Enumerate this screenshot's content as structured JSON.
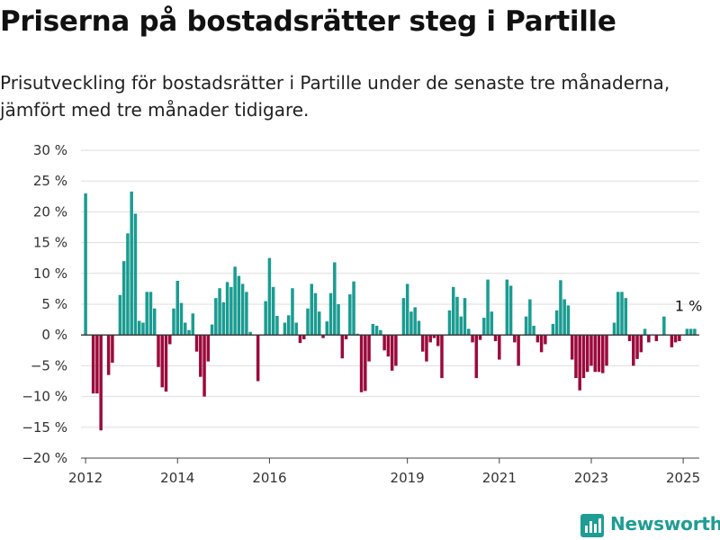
{
  "header": {
    "title": "Priserna på bostadsrätter steg i Partille",
    "subtitle": "Prisutveckling för bostadsrätter i Partille under de senaste tre månaderna, jämfört med tre månader tidigare."
  },
  "brand": {
    "name": "Newsworthy"
  },
  "colors": {
    "positive": "#1a9c91",
    "negative": "#9b0a3c",
    "grid": "#dddddd",
    "zero": "#333333"
  },
  "chart_data": {
    "type": "bar",
    "unit": "%",
    "ylim": [
      -20,
      30
    ],
    "yticks": [
      30,
      25,
      20,
      15,
      10,
      5,
      0,
      -5,
      -10,
      -15,
      -20
    ],
    "ytick_labels": [
      "30 %",
      "25 %",
      "20 %",
      "15 %",
      "10 %",
      "5 %",
      "0 %",
      "−5 %",
      "−10 %",
      "−15 %",
      "−20 %"
    ],
    "x_range": [
      2011.9,
      2025.35
    ],
    "xticks": [
      2012,
      2014,
      2016,
      2019,
      2021,
      2023,
      2025
    ],
    "xtick_labels": [
      "2012",
      "2014",
      "2016",
      "2019",
      "2021",
      "2023",
      "2025"
    ],
    "grid": true,
    "annotation": {
      "text": "1 %",
      "x": 2025.0,
      "y": 1
    },
    "start": 2012.0,
    "step": 0.0833333,
    "values": [
      23.0,
      0,
      -9.5,
      -9.5,
      -15.5,
      0,
      -6.5,
      -4.5,
      0,
      6.5,
      12.0,
      16.5,
      23.3,
      19.7,
      2.3,
      2.0,
      7.0,
      7.0,
      4.3,
      -5.2,
      -8.5,
      -9.2,
      -1.5,
      4.3,
      8.8,
      5.2,
      2.0,
      0.8,
      3.5,
      -2.7,
      -6.8,
      -10.0,
      -4.3,
      1.7,
      6.0,
      7.6,
      5.3,
      8.6,
      7.8,
      11.1,
      9.6,
      8.3,
      7.0,
      0.5,
      0,
      -7.5,
      0,
      5.5,
      12.5,
      7.8,
      3.1,
      0,
      2.0,
      3.2,
      7.6,
      2.0,
      -1.3,
      -0.7,
      4.3,
      8.3,
      6.8,
      3.8,
      -0.5,
      2.2,
      6.8,
      11.8,
      5.0,
      -3.8,
      -0.7,
      6.6,
      8.7,
      0.2,
      -9.3,
      -9.1,
      -4.3,
      1.8,
      1.5,
      0.8,
      -2.5,
      -3.5,
      -5.8,
      -5.0,
      0,
      6.0,
      8.3,
      3.8,
      4.5,
      2.3,
      -2.7,
      -4.3,
      -1.2,
      -0.5,
      -1.8,
      -7.0,
      0,
      4.0,
      7.8,
      6.2,
      3.0,
      6.0,
      1.0,
      -1.2,
      -7.0,
      -0.8,
      2.8,
      9.0,
      3.8,
      -1.0,
      -4.0,
      0,
      9.0,
      8.0,
      -1.2,
      -5.0,
      0,
      3.0,
      5.8,
      1.5,
      -1.2,
      -2.8,
      -1.5,
      0,
      1.8,
      4.0,
      8.9,
      5.8,
      4.8,
      -4.0,
      -7.0,
      -9.0,
      -7.0,
      -6.0,
      -5.0,
      -6.0,
      -6.0,
      -6.2,
      -5.0,
      0,
      2.0,
      7.0,
      7.0,
      6.0,
      -1.0,
      -5.0,
      -3.9,
      -2.8,
      1.0,
      -1.2,
      0,
      -1.0,
      0,
      3.0,
      0,
      -2.0,
      -1.2,
      -1.0,
      0,
      1.0,
      1.0,
      1.0
    ]
  }
}
